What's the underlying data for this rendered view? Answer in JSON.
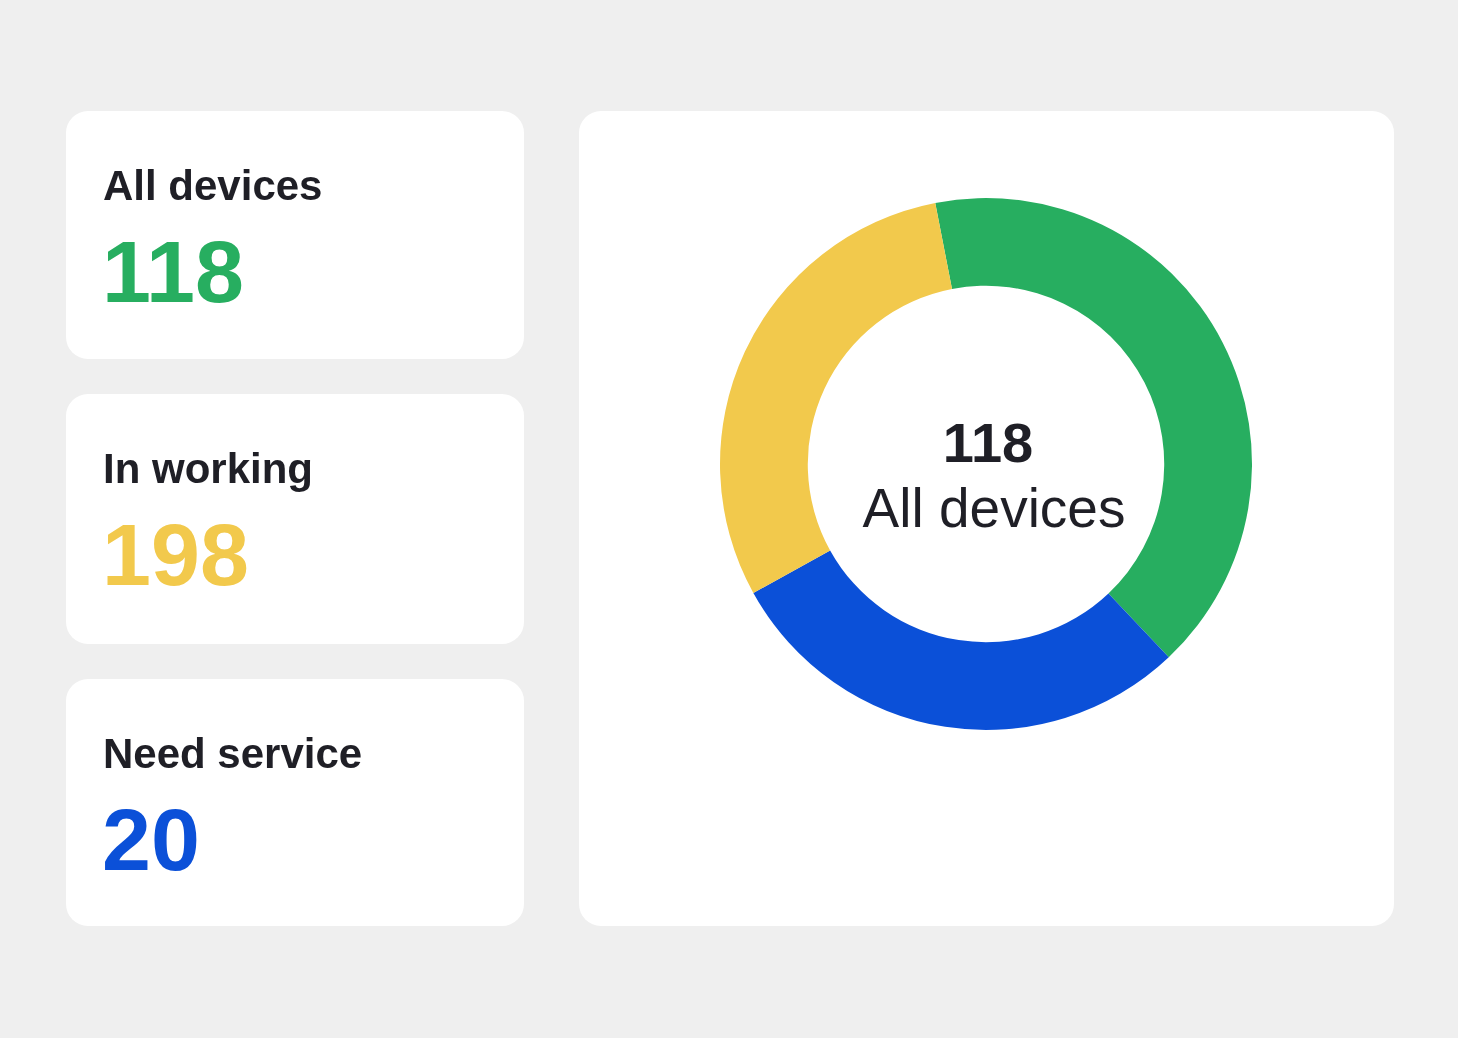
{
  "chart_data": [
    {
      "type": "other",
      "title": "All devices",
      "annotations": [
        "118"
      ],
      "color": "#27ae60"
    },
    {
      "type": "other",
      "title": "In working",
      "annotations": [
        "198"
      ],
      "color": "#f2c94c"
    },
    {
      "type": "other",
      "title": "Need service",
      "annotations": [
        "20"
      ],
      "color": "#0b50d8"
    },
    {
      "type": "donut",
      "categories": [
        null,
        null,
        null
      ],
      "values": [
        41,
        29,
        30
      ],
      "colors": [
        "#27ae60",
        "#0b50d8",
        "#f2c94c"
      ],
      "annotations": [
        "118",
        "All devices"
      ]
    }
  ]
}
